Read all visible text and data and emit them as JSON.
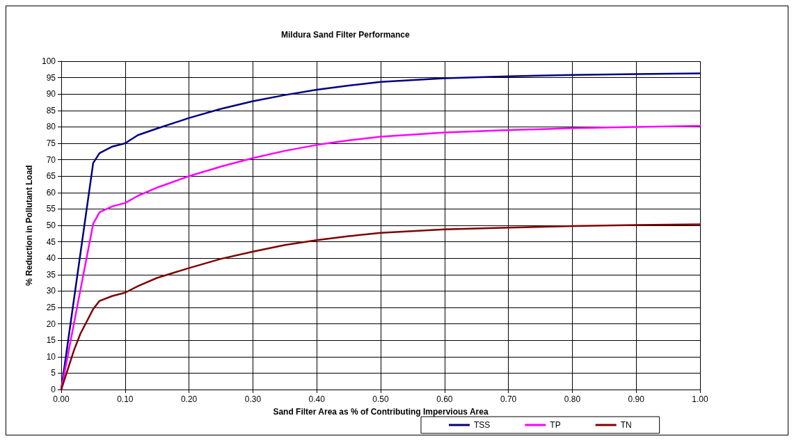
{
  "chart_data": {
    "type": "line",
    "title": "Mildura Sand Filter Performance",
    "xlabel": "Sand Filter Area as % of Contributing Impervious Area",
    "ylabel": "% Reduction in Pollutant Load",
    "xlim": [
      0,
      1
    ],
    "ylim": [
      0,
      100
    ],
    "xticks": [
      {
        "value": 0,
        "label": "0.00"
      },
      {
        "value": 0.1,
        "label": "0.10"
      },
      {
        "value": 0.2,
        "label": "0.20"
      },
      {
        "value": 0.3,
        "label": "0.30"
      },
      {
        "value": 0.4,
        "label": "0.40"
      },
      {
        "value": 0.5,
        "label": "0.50"
      },
      {
        "value": 0.6,
        "label": "0.60"
      },
      {
        "value": 0.7,
        "label": "0.70"
      },
      {
        "value": 0.8,
        "label": "0.80"
      },
      {
        "value": 0.9,
        "label": "0.90"
      },
      {
        "value": 1,
        "label": "1.00"
      }
    ],
    "yticks": [
      0,
      5,
      10,
      15,
      20,
      25,
      30,
      35,
      40,
      45,
      50,
      55,
      60,
      65,
      70,
      75,
      80,
      85,
      90,
      95,
      100
    ],
    "x": [
      0,
      0.05,
      0.06,
      0.08,
      0.1,
      0.12,
      0.15,
      0.2,
      0.25,
      0.3,
      0.35,
      0.4,
      0.45,
      0.5,
      0.6,
      0.7,
      0.8,
      0.9,
      1
    ],
    "series": [
      {
        "name": "TSS",
        "color": "#000080",
        "values": [
          0,
          69,
          72,
          74,
          75,
          77.5,
          79.5,
          82.7,
          85.5,
          87.8,
          89.7,
          91.3,
          92.6,
          93.7,
          94.8,
          95.4,
          95.8,
          96.1,
          96.3
        ]
      },
      {
        "name": "TP",
        "color": "#ff00ff",
        "values": [
          0,
          50.5,
          54,
          55.8,
          56.8,
          59,
          61.5,
          65,
          67.9,
          70.5,
          72.7,
          74.5,
          75.9,
          77,
          78.3,
          79,
          79.6,
          80,
          80.3
        ]
      },
      {
        "name": "TN",
        "color": "#800000",
        "x": [
          0,
          0.02,
          0.03,
          0.05,
          0.06,
          0.08,
          0.1,
          0.12,
          0.15,
          0.2,
          0.25,
          0.3,
          0.35,
          0.4,
          0.45,
          0.5,
          0.6,
          0.7,
          0.8,
          0.9,
          1
        ],
        "values": [
          0,
          12,
          17,
          24.5,
          27,
          28.5,
          29.5,
          31.5,
          34,
          37,
          39.8,
          42,
          44,
          45.5,
          46.7,
          47.7,
          48.8,
          49.3,
          49.8,
          50.1,
          50.3
        ]
      }
    ],
    "grid": true,
    "legend": "bottom",
    "marker": "none",
    "line_style": "solid"
  }
}
